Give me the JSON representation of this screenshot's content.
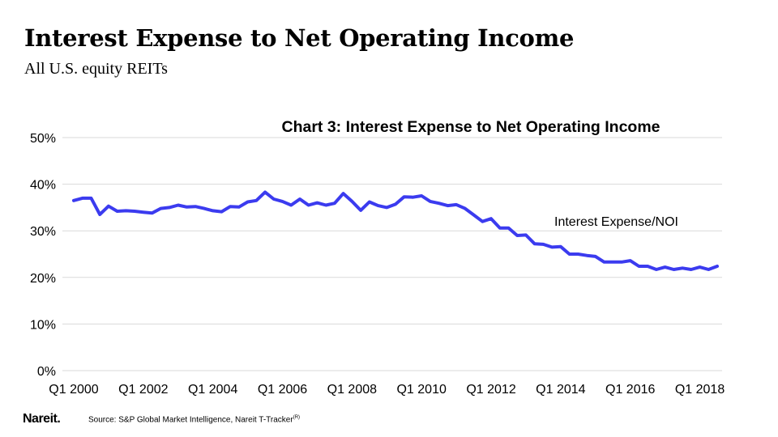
{
  "slide": {
    "title": "Interest Expense to Net Operating Income",
    "subtitle": "All U.S. equity REITs"
  },
  "footer": {
    "logo": "Nareit.",
    "source": "Source: S&P Global Market Intelligence, Nareit T-Tracker",
    "source_mark": "(R)"
  },
  "colors": {
    "line": "#3b3bef",
    "grid": "#d9d9d9",
    "text": "#000000"
  },
  "chart_data": {
    "type": "line",
    "title": "Chart 3: Interest Expense to Net Operating Income",
    "xlabel": "",
    "ylabel": "",
    "ylim": [
      0,
      50
    ],
    "y_ticks": [
      "0%",
      "10%",
      "20%",
      "30%",
      "40%",
      "50%"
    ],
    "x_tick_labels": [
      "Q1 2000",
      "Q1 2002",
      "Q1 2004",
      "Q1 2006",
      "Q1 2008",
      "Q1 2010",
      "Q1 2012",
      "Q1 2014",
      "Q1 2016",
      "Q1 2018"
    ],
    "grid": true,
    "annotation": "Interest Expense/NOI",
    "categories": [
      "Q1 2000",
      "Q2 2000",
      "Q3 2000",
      "Q4 2000",
      "Q1 2001",
      "Q2 2001",
      "Q3 2001",
      "Q4 2001",
      "Q1 2002",
      "Q2 2002",
      "Q3 2002",
      "Q4 2002",
      "Q1 2003",
      "Q2 2003",
      "Q3 2003",
      "Q4 2003",
      "Q1 2004",
      "Q2 2004",
      "Q3 2004",
      "Q4 2004",
      "Q1 2005",
      "Q2 2005",
      "Q3 2005",
      "Q4 2005",
      "Q1 2006",
      "Q2 2006",
      "Q3 2006",
      "Q4 2006",
      "Q1 2007",
      "Q2 2007",
      "Q3 2007",
      "Q4 2007",
      "Q1 2008",
      "Q2 2008",
      "Q3 2008",
      "Q4 2008",
      "Q1 2009",
      "Q2 2009",
      "Q3 2009",
      "Q4 2009",
      "Q1 2010",
      "Q2 2010",
      "Q3 2010",
      "Q4 2010",
      "Q1 2011",
      "Q2 2011",
      "Q3 2011",
      "Q4 2011",
      "Q1 2012",
      "Q2 2012",
      "Q3 2012",
      "Q4 2012",
      "Q1 2013",
      "Q2 2013",
      "Q3 2013",
      "Q4 2013",
      "Q1 2014",
      "Q2 2014",
      "Q3 2014",
      "Q4 2014",
      "Q1 2015",
      "Q2 2015",
      "Q3 2015",
      "Q4 2015",
      "Q1 2016",
      "Q2 2016",
      "Q3 2016",
      "Q4 2016",
      "Q1 2017",
      "Q2 2017",
      "Q3 2017",
      "Q4 2017",
      "Q1 2018",
      "Q2 2018",
      "Q3 2018"
    ],
    "series": [
      {
        "name": "Interest Expense/NOI",
        "values": [
          36.5,
          37.0,
          37.0,
          33.5,
          35.3,
          34.2,
          34.3,
          34.2,
          34.0,
          33.8,
          34.8,
          35.0,
          35.5,
          35.1,
          35.2,
          34.8,
          34.3,
          34.1,
          35.2,
          35.1,
          36.2,
          36.5,
          38.3,
          36.8,
          36.3,
          35.5,
          36.8,
          35.5,
          36.0,
          35.5,
          35.9,
          38.0,
          36.3,
          34.4,
          36.2,
          35.4,
          35.0,
          35.7,
          37.3,
          37.2,
          37.5,
          36.3,
          35.9,
          35.4,
          35.6,
          34.8,
          33.4,
          32.0,
          32.6,
          30.6,
          30.6,
          29.0,
          29.1,
          27.2,
          27.1,
          26.5,
          26.6,
          25.0,
          25.0,
          24.7,
          24.5,
          23.3,
          23.3,
          23.3,
          23.6,
          22.4,
          22.4,
          21.7,
          22.2,
          21.7,
          22.0,
          21.7,
          22.2,
          21.7,
          22.4
        ]
      }
    ]
  }
}
